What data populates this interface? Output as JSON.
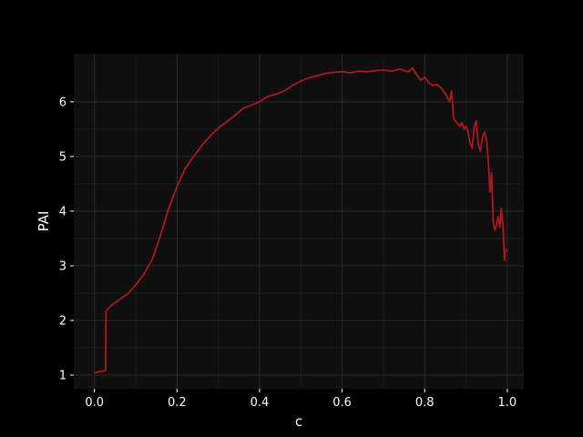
{
  "chart_data": {
    "type": "line",
    "title": "",
    "xlabel": "c",
    "ylabel": "PAI",
    "xlim": [
      -0.05,
      1.04
    ],
    "ylim": [
      0.75,
      6.88
    ],
    "x_ticks": [
      0.0,
      0.2,
      0.4,
      0.6,
      0.8,
      1.0
    ],
    "x_tick_labels": [
      "0.0",
      "0.2",
      "0.4",
      "0.6",
      "0.8",
      "1.0"
    ],
    "y_ticks": [
      1,
      2,
      3,
      4,
      5,
      6
    ],
    "y_tick_labels": [
      "1",
      "2",
      "3",
      "4",
      "5",
      "6"
    ],
    "grid": true,
    "legend": "none",
    "colors": {
      "background": "#000000",
      "panel": "#0f0f0f",
      "grid": "#2b2b2b",
      "line": "#b0161c",
      "text": "#ffffff"
    },
    "series": [
      {
        "color": "#b0161c",
        "x": [
          0.0,
          0.01,
          0.02,
          0.027,
          0.028,
          0.04,
          0.06,
          0.08,
          0.1,
          0.12,
          0.14,
          0.16,
          0.18,
          0.2,
          0.22,
          0.24,
          0.26,
          0.28,
          0.3,
          0.32,
          0.34,
          0.36,
          0.38,
          0.4,
          0.42,
          0.44,
          0.46,
          0.48,
          0.5,
          0.52,
          0.54,
          0.56,
          0.58,
          0.6,
          0.62,
          0.64,
          0.66,
          0.68,
          0.7,
          0.72,
          0.74,
          0.76,
          0.77,
          0.78,
          0.79,
          0.8,
          0.81,
          0.82,
          0.83,
          0.84,
          0.85,
          0.86,
          0.865,
          0.87,
          0.875,
          0.88,
          0.885,
          0.89,
          0.895,
          0.9,
          0.905,
          0.91,
          0.915,
          0.92,
          0.925,
          0.93,
          0.935,
          0.94,
          0.945,
          0.95,
          0.955,
          0.958,
          0.962,
          0.966,
          0.97,
          0.974,
          0.978,
          0.982,
          0.986,
          0.99,
          0.993,
          0.996,
          1.0
        ],
        "y": [
          1.04,
          1.06,
          1.07,
          1.08,
          2.17,
          2.27,
          2.38,
          2.48,
          2.65,
          2.85,
          3.12,
          3.55,
          4.05,
          4.45,
          4.78,
          5.0,
          5.2,
          5.37,
          5.52,
          5.63,
          5.75,
          5.88,
          5.94,
          6.0,
          6.1,
          6.14,
          6.2,
          6.3,
          6.38,
          6.44,
          6.48,
          6.52,
          6.54,
          6.55,
          6.53,
          6.56,
          6.55,
          6.57,
          6.58,
          6.56,
          6.6,
          6.55,
          6.62,
          6.5,
          6.4,
          6.45,
          6.35,
          6.3,
          6.32,
          6.25,
          6.15,
          6.0,
          6.2,
          5.7,
          5.65,
          5.6,
          5.55,
          5.62,
          5.5,
          5.55,
          5.45,
          5.25,
          5.15,
          5.55,
          5.65,
          5.2,
          5.1,
          5.35,
          5.45,
          5.3,
          4.8,
          4.35,
          4.7,
          3.8,
          3.65,
          3.75,
          3.9,
          3.7,
          4.05,
          3.7,
          3.1,
          3.28,
          3.3
        ]
      }
    ]
  }
}
